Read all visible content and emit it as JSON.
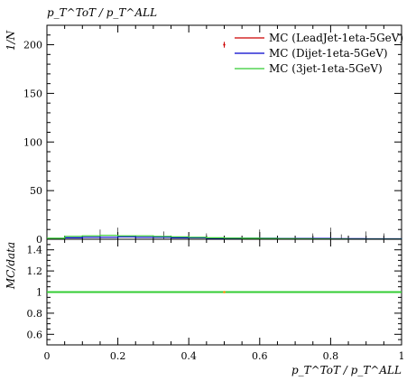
{
  "chart_data": [
    {
      "type": "line",
      "panel": "main",
      "title": "",
      "top_label": "p_T^ToT / p_T^ALL",
      "ylabel": "1/N",
      "xlim": [
        0,
        1
      ],
      "ylim": [
        0,
        220
      ],
      "yticks": [
        0,
        50,
        100,
        150,
        200
      ],
      "ytick_labels": [
        "0",
        "50",
        "100",
        "150",
        "200"
      ],
      "legend_position": "top-right",
      "legend": [
        {
          "label": "MC (LeadJet-1eta-5GeV)",
          "color": "#cc0000"
        },
        {
          "label": "MC (Dijet-1eta-5GeV)",
          "color": "#0000cc"
        },
        {
          "label": "MC (3jet-1eta-5GeV)",
          "color": "#33cc33"
        }
      ],
      "series": [
        {
          "name": "MC (LeadJet-1eta-5GeV)",
          "color": "#cc0000",
          "points": [
            {
              "x": 0.5,
              "y": 200,
              "err": 3
            }
          ]
        },
        {
          "name": "MC (Dijet-1eta-5GeV)",
          "color": "#0000cc",
          "x": [
            0.0,
            0.05,
            0.1,
            0.15,
            0.2,
            0.25,
            0.3,
            0.35,
            0.4,
            0.45,
            0.5,
            0.55,
            0.6,
            0.65,
            0.7,
            0.75,
            0.8,
            0.85,
            0.9,
            0.95,
            1.0
          ],
          "y": [
            0.5,
            1.5,
            2.0,
            2.0,
            2.5,
            2.0,
            2.0,
            1.5,
            1.5,
            1.0,
            1.0,
            1.0,
            1.0,
            0.8,
            0.8,
            0.8,
            0.6,
            0.6,
            0.5,
            0.5,
            0.4
          ]
        },
        {
          "name": "MC (3jet-1eta-5GeV)",
          "color": "#33cc33",
          "x": [
            0.0,
            0.05,
            0.1,
            0.15,
            0.2,
            0.25,
            0.3,
            0.35,
            0.4,
            0.45,
            0.5,
            0.55,
            0.6,
            0.65,
            0.7,
            0.75,
            0.8,
            0.85,
            0.9,
            0.95,
            1.0
          ],
          "y": [
            1.0,
            3.0,
            3.5,
            4.0,
            3.5,
            3.5,
            3.0,
            2.5,
            2.0,
            1.5,
            1.2,
            1.0,
            0.8,
            0.6,
            0.5,
            0.4,
            0.3,
            0.2,
            0.1,
            0.1,
            0.0
          ]
        }
      ],
      "spikes": [
        {
          "x": 0.15,
          "y": 10
        },
        {
          "x": 0.2,
          "y": 12
        },
        {
          "x": 0.33,
          "y": 8
        },
        {
          "x": 0.45,
          "y": 6
        },
        {
          "x": 0.6,
          "y": 10
        },
        {
          "x": 0.75,
          "y": 6
        },
        {
          "x": 0.8,
          "y": 12
        },
        {
          "x": 0.83,
          "y": 5
        },
        {
          "x": 0.9,
          "y": 8
        },
        {
          "x": 0.95,
          "y": 6
        }
      ]
    },
    {
      "type": "line",
      "panel": "ratio",
      "ylabel": "MC/data",
      "xlabel": "p_T^ToT / p_T^ALL",
      "xlim": [
        0,
        1
      ],
      "ylim": [
        0.5,
        1.5
      ],
      "yticks": [
        0.6,
        0.8,
        1.0,
        1.2,
        1.4
      ],
      "ytick_labels": [
        "0.6",
        "0.8",
        "1",
        "1.2",
        "1.4"
      ],
      "xticks": [
        0,
        0.2,
        0.4,
        0.6,
        0.8,
        1.0
      ],
      "xtick_labels": [
        "0",
        "0.2",
        "0.4",
        "0.6",
        "0.8",
        "1"
      ],
      "series": [
        {
          "name": "MC (Dijet-1eta-5GeV)",
          "color": "#0000cc",
          "x": [
            0,
            1
          ],
          "y": [
            1.0,
            1.0
          ]
        },
        {
          "name": "MC (3jet-1eta-5GeV)",
          "color": "#33cc33",
          "x": [
            0,
            1
          ],
          "y": [
            1.0,
            1.0
          ]
        }
      ],
      "marker": {
        "x": 0.5,
        "y": 1.0,
        "color": "#ff8800"
      }
    }
  ]
}
